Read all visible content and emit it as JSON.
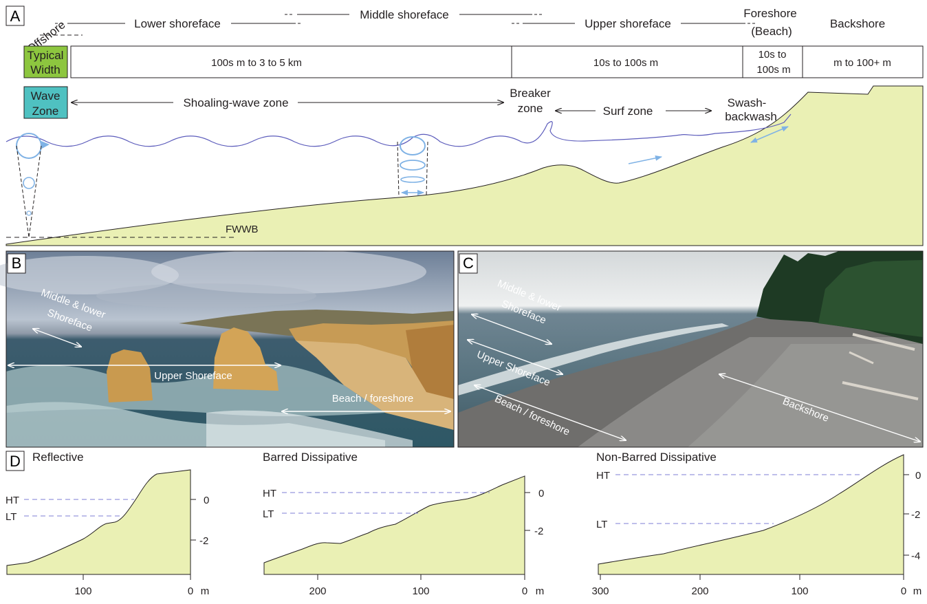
{
  "panel_a": {
    "letter": "A",
    "zones": {
      "offshore": "Offshore",
      "lower": "Lower shoreface",
      "middle": "Middle shoreface",
      "upper": "Upper shoreface",
      "foreshore_1": "Foreshore",
      "foreshore_2": "(Beach)",
      "backshore": "Backshore"
    },
    "width_row": {
      "label_1": "Typical",
      "label_2": "Width",
      "cell_1": "100s m to 3 to 5 km",
      "cell_2": "10s to 100s m",
      "cell_3a": "10s to",
      "cell_3b": "100s m",
      "cell_4": "m to 100+ m"
    },
    "wave_row": {
      "label_1": "Wave",
      "label_2": "Zone",
      "shoaling": "Shoaling-wave zone",
      "breaker_1": "Breaker",
      "breaker_2": "zone",
      "surf": "Surf zone",
      "swash_1": "Swash-",
      "swash_2": "backwash"
    },
    "fwwb": "FWWB",
    "colors": {
      "width_box": "#8dc63f",
      "wave_box": "#4fc1c1",
      "sediment": "#eaf0b4",
      "water_line": "#5b5bbb",
      "orbital": "#7fb2e5"
    }
  },
  "panel_b": {
    "letter": "B",
    "labels": {
      "middle_1": "Middle & lower",
      "middle_2": "Shoreface",
      "upper": "Upper Shoreface",
      "beach": "Beach / foreshore"
    }
  },
  "panel_c": {
    "letter": "C",
    "labels": {
      "middle_1": "Middle & lower",
      "middle_2": "Shoreface",
      "upper": "Upper Shoreface",
      "beach": "Beach / foreshore",
      "backshore": "Backshore"
    }
  },
  "panel_d": {
    "letter": "D",
    "ht": "HT",
    "lt": "LT",
    "unit": "m",
    "profiles": [
      {
        "title": "Reflective",
        "x_ticks": [
          "100",
          "0"
        ],
        "y_ticks": [
          "0",
          "-2"
        ]
      },
      {
        "title": "Barred Dissipative",
        "x_ticks": [
          "200",
          "100",
          "0"
        ],
        "y_ticks": [
          "0",
          "-2"
        ]
      },
      {
        "title": "Non-Barred Dissipative",
        "x_ticks": [
          "300",
          "200",
          "100",
          "0"
        ],
        "y_ticks": [
          "0",
          "-2",
          "-4"
        ]
      }
    ]
  }
}
